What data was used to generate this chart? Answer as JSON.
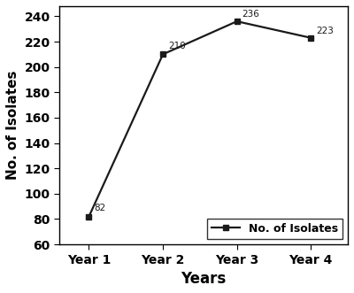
{
  "x_labels": [
    "Year 1",
    "Year 2",
    "Year 3",
    "Year 4"
  ],
  "x_values": [
    1,
    2,
    3,
    4
  ],
  "y_values": [
    82,
    210,
    236,
    223
  ],
  "annotations": [
    "82",
    "210",
    "236",
    "223"
  ],
  "line_color": "#1a1a1a",
  "marker": "s",
  "marker_size": 5,
  "marker_color": "#1a1a1a",
  "line_width": 1.6,
  "xlabel": "Years",
  "ylabel": "No. of Isolates",
  "xlabel_fontsize": 12,
  "ylabel_fontsize": 11,
  "tick_fontsize": 10,
  "ylim": [
    60,
    248
  ],
  "yticks": [
    60,
    80,
    100,
    120,
    140,
    160,
    180,
    200,
    220,
    240
  ],
  "legend_label": "No. of Isolates",
  "legend_fontsize": 9,
  "annotation_fontsize": 7.5,
  "background_color": "#ffffff",
  "spine_color": "#000000",
  "figsize": [
    4.0,
    3.31
  ],
  "dpi": 100
}
